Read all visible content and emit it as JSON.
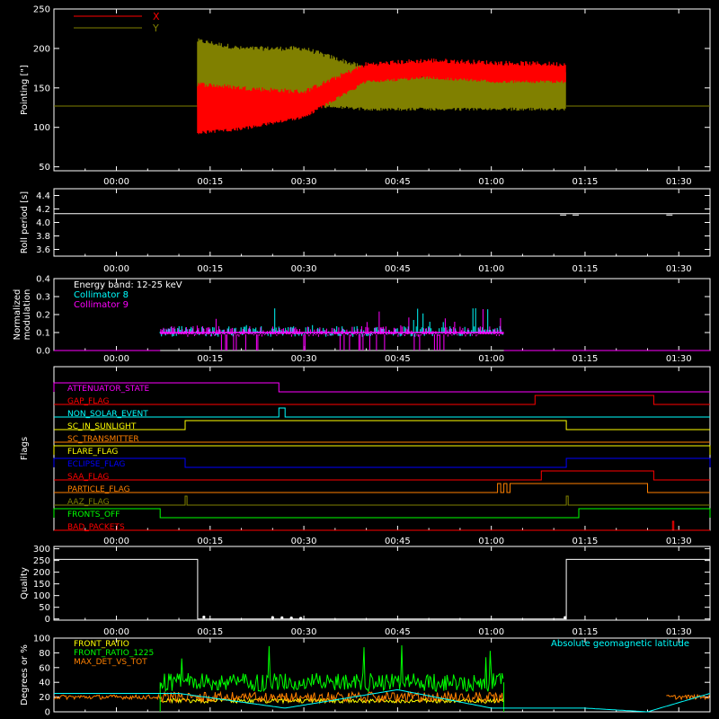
{
  "colors": {
    "bg": "#000000",
    "axis": "#ffffff",
    "red": "#ff0000",
    "olive": "#808000",
    "cyan": "#00ffff",
    "magenta": "#ff00ff",
    "green": "#00ff00",
    "yellow": "#ffff00",
    "orange": "#ff8000",
    "blue": "#0000ff"
  },
  "time_ticks": [
    "00:00",
    "00:15",
    "00:30",
    "00:45",
    "01:00",
    "01:15",
    "01:30"
  ],
  "time_tick_minutes": [
    0,
    15,
    30,
    45,
    60,
    75,
    90
  ],
  "time_range_minutes": [
    -10,
    95
  ],
  "chart_data": [
    {
      "type": "line",
      "id": "pointing",
      "ylabel": "Pointing [\"]",
      "ylim": [
        45,
        250
      ],
      "yticks": [
        50,
        100,
        150,
        200,
        250
      ],
      "legend": [
        {
          "label": "X",
          "color": "#ff0000"
        },
        {
          "label": "Y",
          "color": "#808000"
        }
      ],
      "baseline": 127,
      "active_range": [
        13,
        72
      ],
      "series": [
        {
          "name": "X",
          "color": "#ff0000",
          "t": [
            13,
            20,
            30,
            40,
            50,
            60,
            72
          ],
          "low": [
            95,
            100,
            115,
            160,
            165,
            160,
            160
          ],
          "high": [
            155,
            150,
            145,
            180,
            185,
            182,
            180
          ]
        },
        {
          "name": "Y",
          "color": "#808000",
          "t": [
            13,
            20,
            30,
            40,
            50,
            60,
            72
          ],
          "low": [
            130,
            130,
            130,
            125,
            125,
            125,
            125
          ],
          "high": [
            210,
            200,
            200,
            175,
            165,
            168,
            170
          ]
        }
      ]
    },
    {
      "type": "line",
      "id": "roll",
      "ylabel": "Roll period [s]",
      "ylim": [
        3.5,
        4.5
      ],
      "yticks": [
        "3.6",
        "3.8",
        "4.0",
        "4.2",
        "4.4"
      ],
      "ytick_values": [
        3.6,
        3.8,
        4.0,
        4.2,
        4.4
      ],
      "value": 4.13
    },
    {
      "type": "line",
      "id": "modulation",
      "ylabel": "Normalized modulation",
      "ylabel_lines": [
        "Normalized",
        "modulation"
      ],
      "ylim": [
        0,
        0.4
      ],
      "yticks": [
        "0.0",
        "0.1",
        "0.2",
        "0.3",
        "0.4"
      ],
      "ytick_values": [
        0,
        0.1,
        0.2,
        0.3,
        0.4
      ],
      "legend": [
        {
          "label": "Energy band: 12-25 keV",
          "color": "#ffffff"
        },
        {
          "label": "Collimator 8",
          "color": "#00ffff"
        },
        {
          "label": "Collimator 9",
          "color": "#ff00ff"
        }
      ],
      "active_range": [
        7,
        62
      ],
      "level": 0.1
    },
    {
      "type": "line",
      "id": "flags",
      "ylabel": "Flags",
      "flags": [
        {
          "label": "ATTENUATOR_STATE",
          "color": "#ff00ff",
          "t": [
            -10,
            26
          ],
          "high_first": true,
          "segments": [
            [
              -10,
              26
            ]
          ]
        },
        {
          "label": "GAP_FLAG",
          "color": "#ff0000",
          "segments": [
            [
              67,
              86
            ]
          ]
        },
        {
          "label": "NON_SOLAR_EVENT",
          "color": "#00ffff",
          "segments": [
            [
              26,
              27
            ]
          ]
        },
        {
          "label": "SC_IN_SUNLIGHT",
          "color": "#ffff00",
          "segments": [
            [
              11,
              72
            ]
          ]
        },
        {
          "label": "SC_TRANSMITTER",
          "color": "#ff8000",
          "segments": []
        },
        {
          "label": "FLARE_FLAG",
          "color": "#ffff00",
          "segments": [
            [
              -10,
              95
            ]
          ]
        },
        {
          "label": "ECLIPSE_FLAG",
          "color": "#0000ff",
          "segments": [
            [
              -10,
              11
            ],
            [
              72,
              95
            ]
          ]
        },
        {
          "label": "SAA_FLAG",
          "color": "#ff0000",
          "segments": [
            [
              68,
              86
            ]
          ]
        },
        {
          "label": "PARTICLE_FLAG",
          "color": "#ff8000",
          "segments": [
            [
              61,
              61.5
            ],
            [
              62,
              62.5
            ],
            [
              63,
              85
            ]
          ]
        },
        {
          "label": "AAZ_FLAG",
          "color": "#808000",
          "segments": [
            [
              11,
              11.3
            ],
            [
              72,
              72.3
            ]
          ]
        },
        {
          "label": "FRONTS_OFF",
          "color": "#00ff00",
          "segments": [
            [
              -10,
              7
            ],
            [
              74,
              95
            ]
          ]
        },
        {
          "label": "BAD_PACKETS",
          "color": "#ff0000",
          "segments": [
            [
              89,
              89.2
            ]
          ]
        }
      ]
    },
    {
      "type": "line",
      "id": "quality",
      "ylabel": "Quality",
      "ylim": [
        -5,
        310
      ],
      "yticks": [
        "0",
        "50",
        "100",
        "150",
        "200",
        "250",
        "300"
      ],
      "ytick_values": [
        0,
        50,
        100,
        150,
        200,
        250,
        300
      ],
      "high_value": 255,
      "high_ranges": [
        [
          -10,
          13
        ],
        [
          72,
          95
        ]
      ]
    },
    {
      "type": "line",
      "id": "ratios",
      "ylabel": "Degrees or %",
      "ylim": [
        0,
        100
      ],
      "yticks": [
        "0",
        "20",
        "40",
        "60",
        "80",
        "100"
      ],
      "ytick_values": [
        0,
        20,
        40,
        60,
        80,
        100
      ],
      "legend": [
        {
          "label": "FRONT_RATIO",
          "color": "#ffff00"
        },
        {
          "label": "FRONT_RATIO_1225",
          "color": "#00ff00"
        },
        {
          "label": "MAX_DET_VS_TOT",
          "color": "#ff8000"
        }
      ],
      "right_label": {
        "label": "Absolute geomagnetic latitude",
        "color": "#00ffff"
      },
      "active_range": [
        7,
        62
      ],
      "green_level": 40,
      "orange_level": 20,
      "yellow_level": 15,
      "latitude": {
        "t": [
          -10,
          10,
          27,
          45,
          60,
          75,
          85,
          95
        ],
        "v": [
          25,
          25,
          5,
          30,
          5,
          5,
          0,
          25
        ]
      }
    }
  ]
}
